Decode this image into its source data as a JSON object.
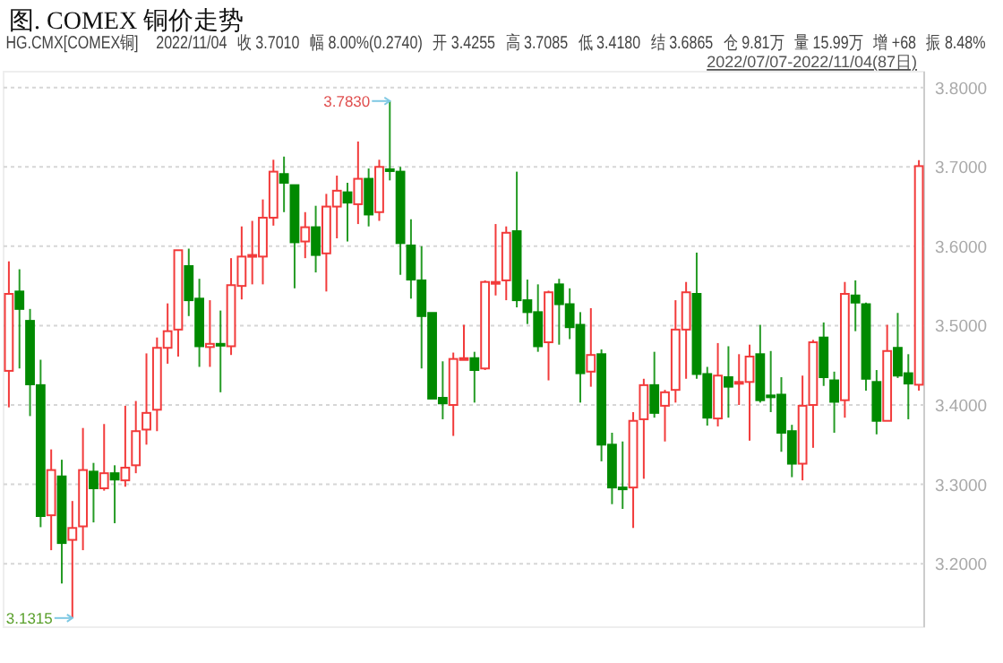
{
  "chart_data": {
    "type": "candlestick",
    "title": "图. COMEX 铜价走势",
    "categories": [
      null,
      null,
      null,
      null,
      null,
      null,
      null,
      null,
      null,
      null,
      null,
      null,
      null,
      null,
      null,
      null,
      null,
      null,
      null,
      null,
      null,
      null,
      null,
      null,
      null,
      null,
      null,
      null,
      null,
      null,
      null,
      null,
      null,
      null,
      null,
      null,
      null,
      null,
      null,
      null,
      null,
      null,
      null,
      null,
      null,
      null,
      null,
      null,
      null,
      null,
      null,
      null,
      null,
      null,
      null,
      null,
      null,
      null,
      null,
      null,
      null,
      null,
      null,
      null,
      null,
      null,
      null,
      null,
      null,
      null,
      null,
      null,
      null,
      null,
      null,
      null,
      null,
      null,
      null,
      null,
      null,
      null,
      null,
      null,
      null,
      null,
      null
    ],
    "ohlc": [
      [
        3.443,
        3.581,
        3.397,
        3.54
      ],
      [
        3.543,
        3.571,
        3.446,
        3.521
      ],
      [
        3.506,
        3.521,
        3.386,
        3.426
      ],
      [
        3.425,
        3.457,
        3.246,
        3.26
      ],
      [
        3.261,
        3.344,
        3.217,
        3.318
      ],
      [
        3.31,
        3.331,
        3.175,
        3.226
      ],
      [
        3.23,
        3.279,
        3.1315,
        3.245
      ],
      [
        3.247,
        3.371,
        3.217,
        3.318
      ],
      [
        3.316,
        3.327,
        3.252,
        3.295
      ],
      [
        3.295,
        3.376,
        3.292,
        3.314
      ],
      [
        3.314,
        3.324,
        3.251,
        3.306
      ],
      [
        3.305,
        3.399,
        3.297,
        3.321
      ],
      [
        3.324,
        3.405,
        3.314,
        3.367
      ],
      [
        3.369,
        3.465,
        3.35,
        3.39
      ],
      [
        3.394,
        3.485,
        3.367,
        3.472
      ],
      [
        3.472,
        3.528,
        3.452,
        3.493
      ],
      [
        3.495,
        3.595,
        3.461,
        3.595
      ],
      [
        3.575,
        3.597,
        3.512,
        3.532
      ],
      [
        3.534,
        3.559,
        3.448,
        3.474
      ],
      [
        3.473,
        3.532,
        3.448,
        3.477
      ],
      [
        3.477,
        3.519,
        3.416,
        3.476
      ],
      [
        3.474,
        3.585,
        3.463,
        3.551
      ],
      [
        3.55,
        3.625,
        3.533,
        3.587
      ],
      [
        3.588,
        3.632,
        3.552,
        3.589
      ],
      [
        3.587,
        3.659,
        3.552,
        3.636
      ],
      [
        3.636,
        3.709,
        3.626,
        3.694
      ],
      [
        3.691,
        3.713,
        3.643,
        3.68
      ],
      [
        3.677,
        3.677,
        3.547,
        3.605
      ],
      [
        3.606,
        3.643,
        3.585,
        3.624
      ],
      [
        3.624,
        3.651,
        3.567,
        3.589
      ],
      [
        3.591,
        3.666,
        3.543,
        3.65
      ],
      [
        3.65,
        3.689,
        3.61,
        3.67
      ],
      [
        3.668,
        3.68,
        3.606,
        3.655
      ],
      [
        3.653,
        3.732,
        3.628,
        3.685
      ],
      [
        3.685,
        3.698,
        3.625,
        3.64
      ],
      [
        3.643,
        3.709,
        3.632,
        3.7
      ],
      [
        3.697,
        3.783,
        3.683,
        3.695
      ],
      [
        3.694,
        3.7,
        3.564,
        3.604
      ],
      [
        3.601,
        3.634,
        3.534,
        3.558
      ],
      [
        3.557,
        3.6,
        3.446,
        3.512
      ],
      [
        3.516,
        3.516,
        3.408,
        3.408
      ],
      [
        3.409,
        3.455,
        3.382,
        3.402
      ],
      [
        3.4,
        3.466,
        3.361,
        3.458
      ],
      [
        3.457,
        3.501,
        3.457,
        3.459
      ],
      [
        3.459,
        3.467,
        3.403,
        3.444
      ],
      [
        3.446,
        3.557,
        3.444,
        3.555
      ],
      [
        3.554,
        3.628,
        3.538,
        3.555
      ],
      [
        3.557,
        3.625,
        3.532,
        3.617
      ],
      [
        3.619,
        3.694,
        3.523,
        3.532
      ],
      [
        3.532,
        3.558,
        3.502,
        3.517
      ],
      [
        3.517,
        3.552,
        3.467,
        3.474
      ],
      [
        3.479,
        3.544,
        3.431,
        3.542
      ],
      [
        3.552,
        3.559,
        3.476,
        3.527
      ],
      [
        3.527,
        3.547,
        3.483,
        3.498
      ],
      [
        3.501,
        3.517,
        3.403,
        3.44
      ],
      [
        3.442,
        3.522,
        3.423,
        3.463
      ],
      [
        3.464,
        3.47,
        3.329,
        3.35
      ],
      [
        3.35,
        3.365,
        3.275,
        3.296
      ],
      [
        3.296,
        3.354,
        3.269,
        3.294
      ],
      [
        3.296,
        3.391,
        3.245,
        3.38
      ],
      [
        3.382,
        3.433,
        3.307,
        3.425
      ],
      [
        3.425,
        3.467,
        3.384,
        3.39
      ],
      [
        3.399,
        3.419,
        3.354,
        3.416
      ],
      [
        3.419,
        3.532,
        3.403,
        3.495
      ],
      [
        3.495,
        3.555,
        3.433,
        3.542
      ],
      [
        3.54,
        3.592,
        3.433,
        3.439
      ],
      [
        3.439,
        3.448,
        3.374,
        3.384
      ],
      [
        3.383,
        3.478,
        3.373,
        3.437
      ],
      [
        3.435,
        3.474,
        3.384,
        3.423
      ],
      [
        3.427,
        3.464,
        3.4,
        3.429
      ],
      [
        3.429,
        3.476,
        3.355,
        3.461
      ],
      [
        3.464,
        3.501,
        3.403,
        3.406
      ],
      [
        3.412,
        3.468,
        3.391,
        3.41
      ],
      [
        3.413,
        3.435,
        3.341,
        3.365
      ],
      [
        3.367,
        3.375,
        3.309,
        3.326
      ],
      [
        3.326,
        3.437,
        3.305,
        3.399
      ],
      [
        3.4,
        3.482,
        3.346,
        3.479
      ],
      [
        3.485,
        3.504,
        3.424,
        3.435
      ],
      [
        3.431,
        3.442,
        3.365,
        3.404
      ],
      [
        3.406,
        3.555,
        3.384,
        3.54
      ],
      [
        3.538,
        3.557,
        3.493,
        3.529
      ],
      [
        3.527,
        3.529,
        3.418,
        3.433
      ],
      [
        3.429,
        3.444,
        3.363,
        3.38
      ],
      [
        3.38,
        3.501,
        3.38,
        3.468
      ],
      [
        3.472,
        3.516,
        3.434,
        3.437
      ],
      [
        3.44,
        3.464,
        3.382,
        3.427
      ],
      [
        3.4255,
        3.7085,
        3.418,
        3.701
      ]
    ],
    "ylim": [
      3.12,
      3.82
    ],
    "yticks": [
      {
        "value": 3.2,
        "label": "3.2000"
      },
      {
        "value": 3.3,
        "label": "3.3000"
      },
      {
        "value": 3.4,
        "label": "3.4000"
      },
      {
        "value": 3.5,
        "label": "3.5000"
      },
      {
        "value": 3.6,
        "label": "3.6000"
      },
      {
        "value": 3.7,
        "label": "3.7000"
      },
      {
        "value": 3.8,
        "label": "3.8000"
      }
    ],
    "tick_labels": "y",
    "grid": "y",
    "annotations": [
      "3.7830",
      "3.1315",
      "HG.CMX[COMEX铜]",
      "2022/11/04",
      "收 3.7010",
      "幅 8.00%(0.2740)",
      "开 3.4255",
      "高 3.7085",
      "低 3.4180",
      "结 3.6865",
      "仓 9.81万",
      "量 15.99万",
      "增 +68",
      "振 8.48%",
      "2022/07/07-2022/11/04(87日)"
    ]
  }
}
